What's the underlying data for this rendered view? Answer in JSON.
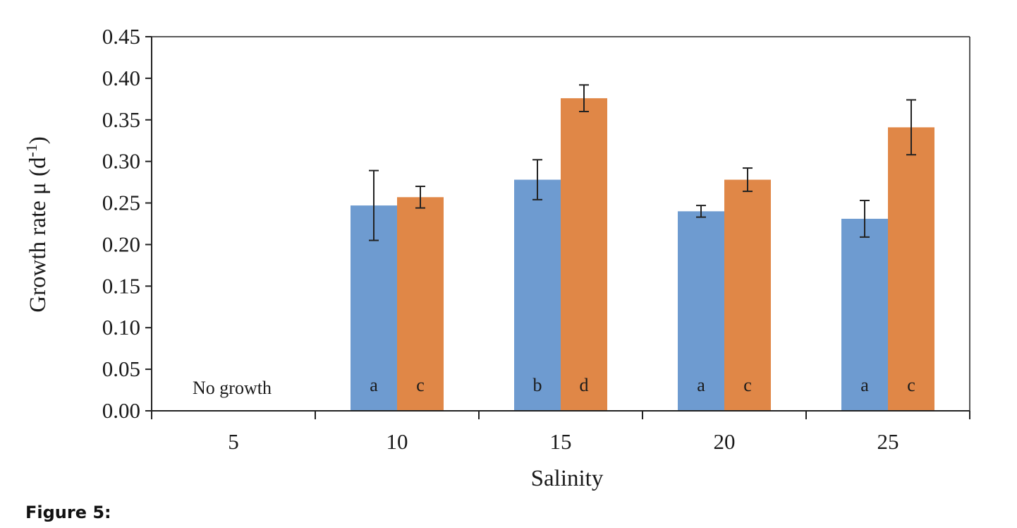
{
  "caption": "Figure 5:",
  "chart_data": {
    "type": "bar",
    "xlabel": "Salinity",
    "ylabel": "Growth rate μ (d",
    "ylabel_superscript": "-1",
    "ylabel_suffix": ")",
    "ylim": [
      0,
      0.45
    ],
    "yticks": [
      "0.00",
      "0.05",
      "0.10",
      "0.15",
      "0.20",
      "0.25",
      "0.30",
      "0.35",
      "0.40",
      "0.45"
    ],
    "categories": [
      "5",
      "10",
      "15",
      "20",
      "25"
    ],
    "grid": false,
    "legend": "none",
    "series": [
      {
        "color": "#6e9bd0",
        "values": [
          null,
          0.247,
          0.278,
          0.24,
          0.231
        ],
        "errors": [
          null,
          0.042,
          0.024,
          0.007,
          0.022
        ],
        "labels": [
          "",
          "a",
          "b",
          "a",
          "a"
        ]
      },
      {
        "color": "#e08747",
        "values": [
          null,
          0.257,
          0.376,
          0.278,
          0.341
        ],
        "errors": [
          null,
          0.013,
          0.016,
          0.014,
          0.033
        ],
        "labels": [
          "",
          "c",
          "d",
          "c",
          "c"
        ]
      }
    ],
    "annotations": [
      {
        "category": "5",
        "text": "No growth"
      }
    ]
  }
}
